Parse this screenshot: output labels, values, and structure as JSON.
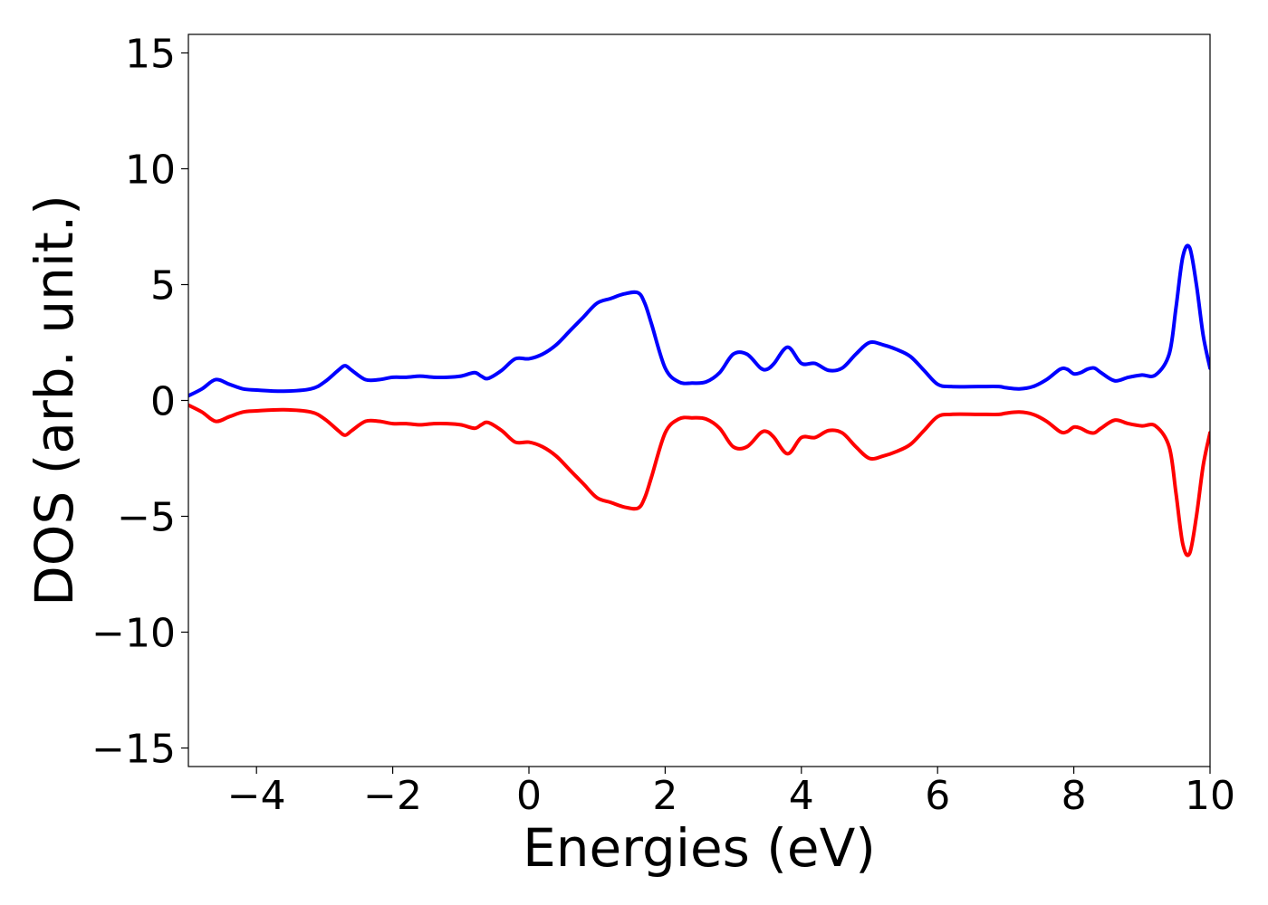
{
  "chart_data": {
    "type": "line",
    "title": "",
    "xlabel": "Energies (eV)",
    "ylabel": "DOS (arb. unit.)",
    "xlim": [
      -5,
      10
    ],
    "ylim": [
      -15.8,
      15.8
    ],
    "xticks": [
      -4,
      -2,
      0,
      2,
      4,
      6,
      8,
      10
    ],
    "xtick_labels": [
      "−4",
      "−2",
      "0",
      "2",
      "4",
      "6",
      "8",
      "10"
    ],
    "yticks": [
      -15,
      -10,
      -5,
      0,
      5,
      10,
      15
    ],
    "ytick_labels": [
      "−15",
      "−10",
      "−5",
      "0",
      "5",
      "10",
      "15"
    ],
    "grid": false,
    "series": [
      {
        "color": "#0000ff",
        "x": [
          -5.0,
          -4.8,
          -4.6,
          -4.4,
          -4.2,
          -4.0,
          -3.6,
          -3.2,
          -3.0,
          -2.8,
          -2.7,
          -2.6,
          -2.4,
          -2.2,
          -2.0,
          -1.8,
          -1.6,
          -1.4,
          -1.2,
          -1.0,
          -0.8,
          -0.7,
          -0.6,
          -0.4,
          -0.2,
          0.0,
          0.2,
          0.4,
          0.6,
          0.8,
          1.0,
          1.2,
          1.4,
          1.6,
          1.7,
          1.8,
          2.0,
          2.2,
          2.4,
          2.6,
          2.8,
          3.0,
          3.2,
          3.4,
          3.5,
          3.6,
          3.8,
          4.0,
          4.2,
          4.4,
          4.6,
          4.8,
          5.0,
          5.2,
          5.4,
          5.6,
          5.8,
          6.0,
          6.2,
          6.6,
          6.9,
          7.0,
          7.2,
          7.4,
          7.6,
          7.8,
          7.9,
          8.0,
          8.1,
          8.2,
          8.3,
          8.4,
          8.6,
          8.8,
          9.0,
          9.2,
          9.4,
          9.5,
          9.6,
          9.7,
          9.8,
          9.9,
          10.0
        ],
        "y": [
          0.2,
          0.5,
          0.9,
          0.7,
          0.5,
          0.45,
          0.4,
          0.5,
          0.8,
          1.3,
          1.5,
          1.3,
          0.9,
          0.9,
          1.0,
          1.0,
          1.05,
          1.0,
          1.0,
          1.05,
          1.2,
          1.05,
          0.95,
          1.3,
          1.8,
          1.8,
          2.0,
          2.4,
          3.0,
          3.6,
          4.2,
          4.4,
          4.6,
          4.65,
          4.2,
          3.3,
          1.4,
          0.8,
          0.75,
          0.8,
          1.2,
          2.0,
          2.0,
          1.4,
          1.35,
          1.6,
          2.3,
          1.6,
          1.6,
          1.3,
          1.4,
          2.0,
          2.5,
          2.4,
          2.2,
          1.9,
          1.3,
          0.7,
          0.6,
          0.6,
          0.6,
          0.55,
          0.5,
          0.6,
          0.9,
          1.35,
          1.35,
          1.15,
          1.2,
          1.35,
          1.4,
          1.2,
          0.85,
          1.0,
          1.1,
          1.1,
          2.0,
          4.0,
          6.2,
          6.6,
          5.0,
          2.8,
          1.4
        ]
      },
      {
        "color": "#ff0000",
        "x": [
          -5.0,
          -4.8,
          -4.6,
          -4.4,
          -4.2,
          -4.0,
          -3.6,
          -3.2,
          -3.0,
          -2.8,
          -2.7,
          -2.6,
          -2.4,
          -2.2,
          -2.0,
          -1.8,
          -1.6,
          -1.4,
          -1.2,
          -1.0,
          -0.8,
          -0.7,
          -0.6,
          -0.4,
          -0.2,
          0.0,
          0.2,
          0.4,
          0.6,
          0.8,
          1.0,
          1.2,
          1.4,
          1.6,
          1.7,
          1.8,
          2.0,
          2.2,
          2.4,
          2.6,
          2.8,
          3.0,
          3.2,
          3.4,
          3.5,
          3.6,
          3.8,
          4.0,
          4.2,
          4.4,
          4.6,
          4.8,
          5.0,
          5.2,
          5.4,
          5.6,
          5.8,
          6.0,
          6.2,
          6.6,
          6.9,
          7.0,
          7.2,
          7.4,
          7.6,
          7.8,
          7.9,
          8.0,
          8.1,
          8.2,
          8.3,
          8.4,
          8.6,
          8.8,
          9.0,
          9.2,
          9.4,
          9.5,
          9.6,
          9.7,
          9.8,
          9.9,
          10.0
        ],
        "y": [
          -0.2,
          -0.5,
          -0.9,
          -0.7,
          -0.5,
          -0.45,
          -0.4,
          -0.5,
          -0.8,
          -1.3,
          -1.5,
          -1.3,
          -0.9,
          -0.9,
          -1.0,
          -1.0,
          -1.05,
          -1.0,
          -1.0,
          -1.05,
          -1.2,
          -1.05,
          -0.95,
          -1.3,
          -1.8,
          -1.8,
          -2.0,
          -2.4,
          -3.0,
          -3.6,
          -4.2,
          -4.4,
          -4.6,
          -4.65,
          -4.2,
          -3.3,
          -1.4,
          -0.8,
          -0.75,
          -0.8,
          -1.2,
          -2.0,
          -2.0,
          -1.4,
          -1.35,
          -1.6,
          -2.3,
          -1.6,
          -1.6,
          -1.3,
          -1.4,
          -2.0,
          -2.5,
          -2.4,
          -2.2,
          -1.9,
          -1.3,
          -0.7,
          -0.6,
          -0.6,
          -0.6,
          -0.55,
          -0.5,
          -0.6,
          -0.9,
          -1.35,
          -1.35,
          -1.15,
          -1.2,
          -1.35,
          -1.4,
          -1.2,
          -0.85,
          -1.0,
          -1.1,
          -1.1,
          -2.0,
          -4.0,
          -6.2,
          -6.6,
          -5.0,
          -2.8,
          -1.4
        ]
      }
    ]
  }
}
